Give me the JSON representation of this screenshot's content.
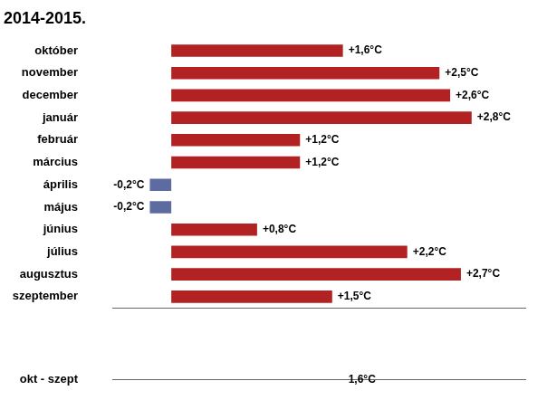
{
  "chart_data": [
    {
      "type": "bar",
      "orientation": "horizontal",
      "title": "2014-2015.",
      "categories": [
        "október",
        "november",
        "december",
        "január",
        "február",
        "március",
        "április",
        "május",
        "június",
        "július",
        "augusztus",
        "szeptember"
      ],
      "values": [
        1.6,
        2.5,
        2.6,
        2.8,
        1.2,
        1.2,
        -0.2,
        -0.2,
        0.8,
        2.2,
        2.7,
        1.5
      ],
      "value_labels": [
        "+1,6°C",
        "+2,5°C",
        "+2,6°C",
        "+2,8°C",
        "+1,2°C",
        "+1,2°C",
        "-0,2°C",
        "-0,2°C",
        "+0,8°C",
        "+2,2°C",
        "+2,7°C",
        "+1,5°C"
      ],
      "data_labels": true,
      "colors": [
        "#B22222",
        "#B22222",
        "#B22222",
        "#B22222",
        "#B22222",
        "#B22222",
        "#5C6BA0",
        "#5C6BA0",
        "#B22222",
        "#B22222",
        "#B22222",
        "#B22222"
      ],
      "xlim": [
        -0.55,
        3.3
      ],
      "grid": false,
      "tick_labels": "y"
    },
    {
      "type": "bar",
      "orientation": "horizontal",
      "categories": [
        "okt - szept"
      ],
      "values": [
        1.6
      ],
      "value_labels": [
        "1,6°C"
      ],
      "data_labels": true,
      "colors": [
        "#B22222"
      ],
      "xlim": [
        -0.55,
        3.3
      ],
      "grid": false,
      "tick_labels": "y"
    }
  ]
}
